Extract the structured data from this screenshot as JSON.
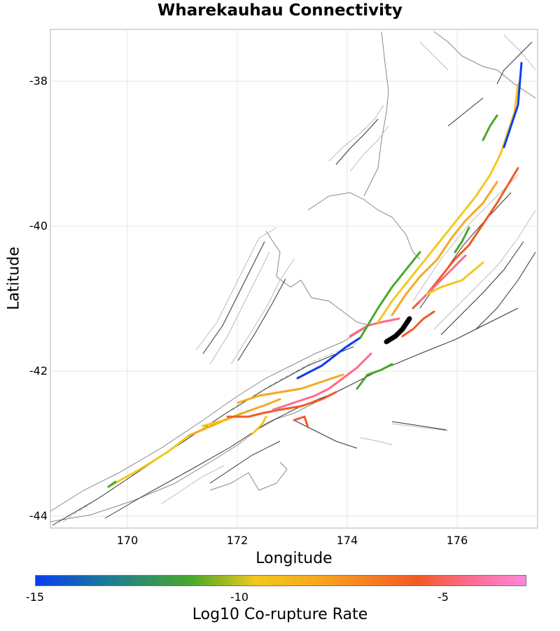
{
  "title": "Wharekauhau Connectivity",
  "x_axis": {
    "label": "Longitude",
    "ticks": [
      "170",
      "172",
      "174",
      "176"
    ]
  },
  "y_axis": {
    "label": "Latitude",
    "ticks": [
      "-38",
      "-40",
      "-42",
      "-44"
    ]
  },
  "colorbar": {
    "label": "Log10 Co-rupture Rate",
    "ticks": [
      "-15",
      "-10",
      "-5"
    ]
  },
  "colors": {
    "target_fault": "#000000",
    "coastline": "#888888",
    "fault_trace": "#333333",
    "scale": [
      "#0a3cf0",
      "#4aa82a",
      "#f2c81e",
      "#f7a820",
      "#f25a24",
      "#ff6a8a",
      "#ff88dc"
    ]
  }
}
